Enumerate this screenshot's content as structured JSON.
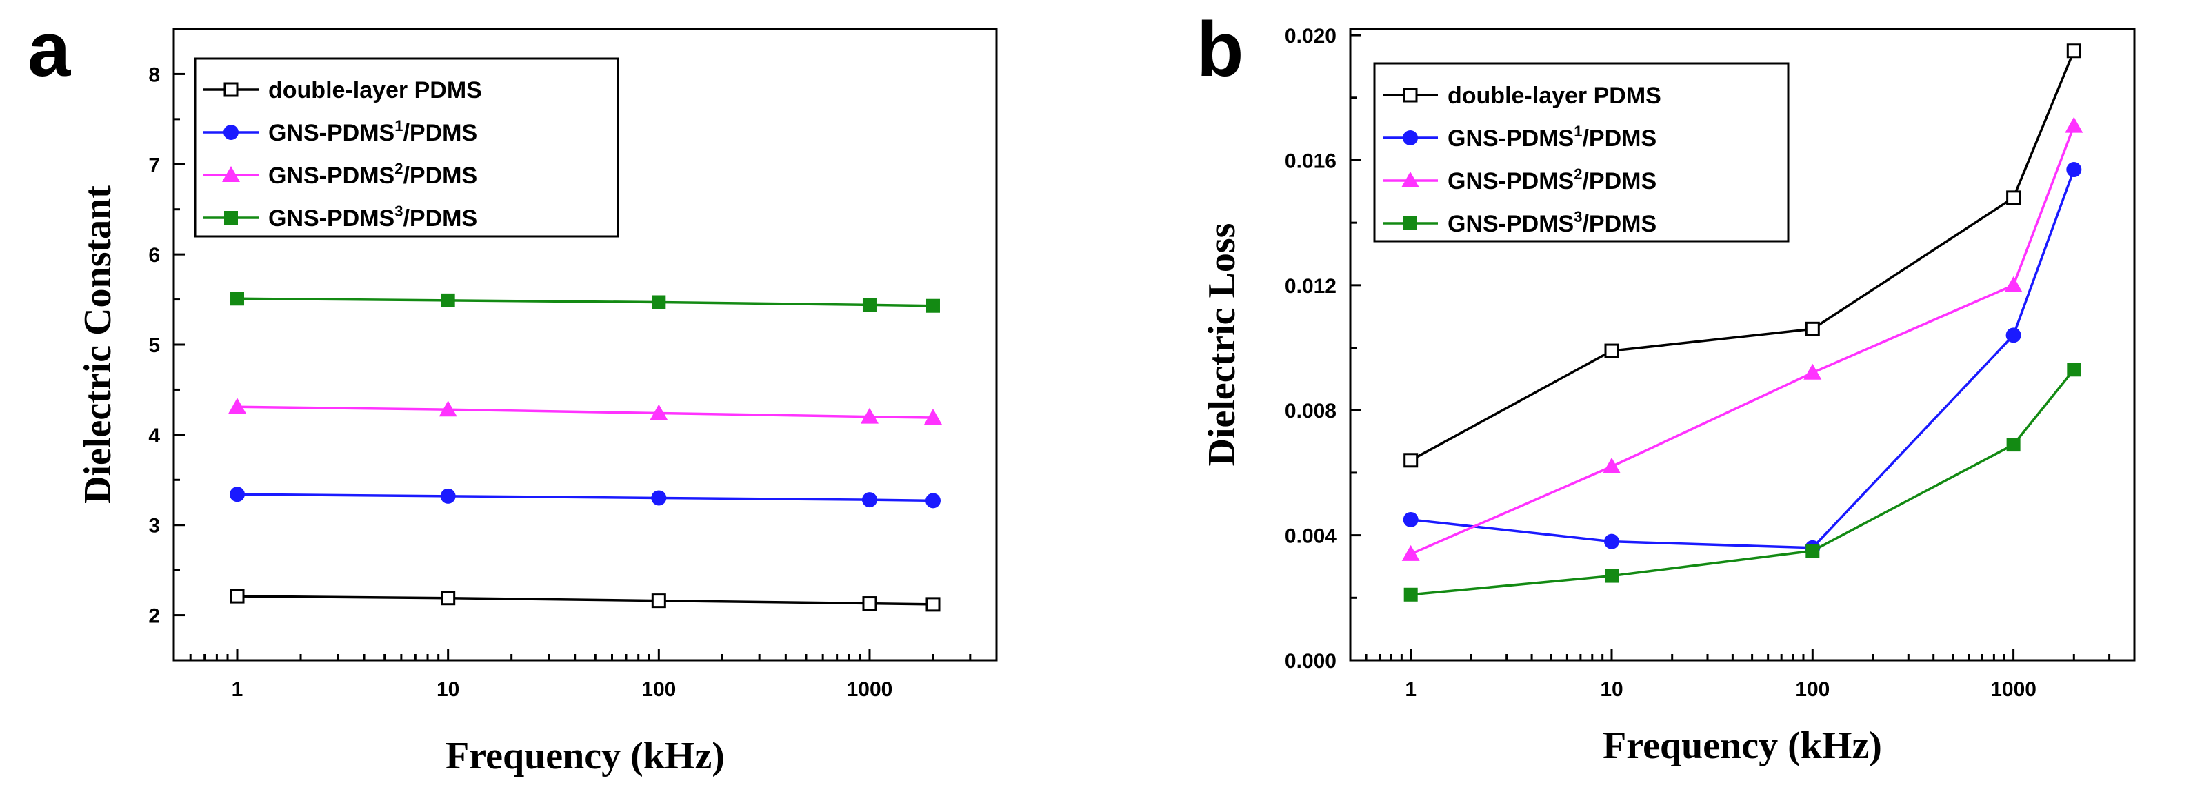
{
  "chart_data": [
    {
      "panel": "a",
      "type": "line",
      "xscale": "log",
      "xlabel": "Frequency (kHz)",
      "ylabel": "Dielectric Constant",
      "xlim": [
        0.5,
        4000
      ],
      "ylim": [
        1.5,
        8.5
      ],
      "xticks": [
        1,
        10,
        100,
        1000
      ],
      "yticks": [
        2,
        3,
        4,
        5,
        6,
        7,
        8
      ],
      "yformat": 0,
      "legend_position": "top-left",
      "x": [
        1,
        10,
        100,
        1000,
        2000
      ],
      "series": [
        {
          "name": "double-layer PDMS",
          "base": "double-layer PDMS",
          "sup": "",
          "suffix": "",
          "color": "#000000",
          "marker": "open-square",
          "values": [
            2.21,
            2.19,
            2.16,
            2.13,
            2.12
          ]
        },
        {
          "name": "GNS-PDMS1/PDMS",
          "base": "GNS-PDMS",
          "sup": "1",
          "suffix": "/PDMS",
          "color": "#1a1aff",
          "marker": "circle",
          "values": [
            3.34,
            3.32,
            3.3,
            3.28,
            3.27
          ]
        },
        {
          "name": "GNS-PDMS2/PDMS",
          "base": "GNS-PDMS",
          "sup": "2",
          "suffix": "/PDMS",
          "color": "#ff33ff",
          "marker": "triangle",
          "values": [
            4.31,
            4.28,
            4.24,
            4.2,
            4.19
          ]
        },
        {
          "name": "GNS-PDMS3/PDMS",
          "base": "GNS-PDMS",
          "sup": "3",
          "suffix": "/PDMS",
          "color": "#138a13",
          "marker": "square",
          "values": [
            5.51,
            5.49,
            5.47,
            5.44,
            5.43
          ]
        }
      ]
    },
    {
      "panel": "b",
      "type": "line",
      "xscale": "log",
      "xlabel": "Frequency (kHz)",
      "ylabel": "Dielectric Loss",
      "xlim": [
        0.5,
        4000
      ],
      "ylim": [
        0.0,
        0.0202
      ],
      "xticks": [
        1,
        10,
        100,
        1000
      ],
      "yticks": [
        0.0,
        0.004,
        0.008,
        0.012,
        0.016,
        0.02
      ],
      "yformat": 3,
      "legend_position": "top-left",
      "x": [
        1,
        10,
        100,
        1000,
        2000
      ],
      "series": [
        {
          "name": "double-layer PDMS",
          "base": "double-layer PDMS",
          "sup": "",
          "suffix": "",
          "color": "#000000",
          "marker": "open-square",
          "values": [
            0.0064,
            0.0099,
            0.0106,
            0.0148,
            0.0195
          ]
        },
        {
          "name": "GNS-PDMS1/PDMS",
          "base": "GNS-PDMS",
          "sup": "1",
          "suffix": "/PDMS",
          "color": "#1a1aff",
          "marker": "circle",
          "values": [
            0.0045,
            0.0038,
            0.0036,
            0.0104,
            0.0157
          ]
        },
        {
          "name": "GNS-PDMS2/PDMS",
          "base": "GNS-PDMS",
          "sup": "2",
          "suffix": "/PDMS",
          "color": "#ff33ff",
          "marker": "triangle",
          "values": [
            0.0034,
            0.0062,
            0.0092,
            0.012,
            0.0171
          ]
        },
        {
          "name": "GNS-PDMS3/PDMS",
          "base": "GNS-PDMS",
          "sup": "3",
          "suffix": "/PDMS",
          "color": "#138a13",
          "marker": "square",
          "values": [
            0.0021,
            0.0027,
            0.0035,
            0.0069,
            0.0093
          ]
        }
      ]
    }
  ]
}
